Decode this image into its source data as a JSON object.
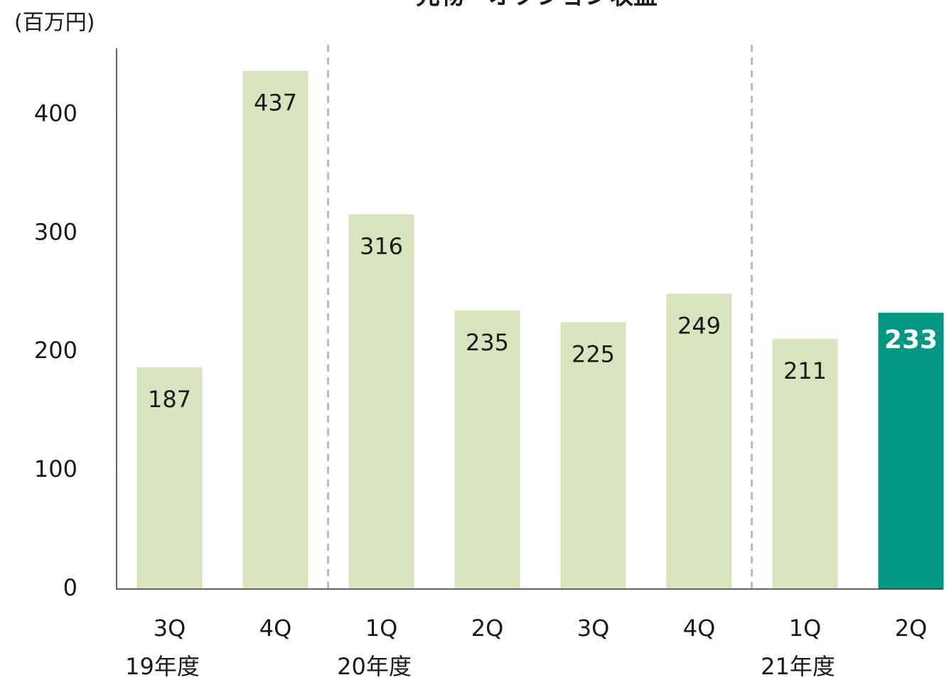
{
  "chart_data": {
    "type": "bar",
    "title": "先物・オプション収益",
    "y_unit": "(百万円)",
    "categories": [
      "3Q",
      "4Q",
      "1Q",
      "2Q",
      "3Q",
      "4Q",
      "1Q",
      "2Q"
    ],
    "year_labels": [
      "19年度",
      null,
      "20年度",
      null,
      null,
      null,
      "21年度",
      null
    ],
    "values": [
      187,
      437,
      316,
      235,
      225,
      249,
      211,
      233
    ],
    "colors": [
      "#d9e4bf",
      "#d9e4bf",
      "#d9e4bf",
      "#d9e4bf",
      "#d9e4bf",
      "#d9e4bf",
      "#d9e4bf",
      "#009882"
    ],
    "ylim": [
      0,
      456
    ],
    "yticks": [
      0,
      100,
      200,
      300,
      400
    ],
    "grid": false
  }
}
